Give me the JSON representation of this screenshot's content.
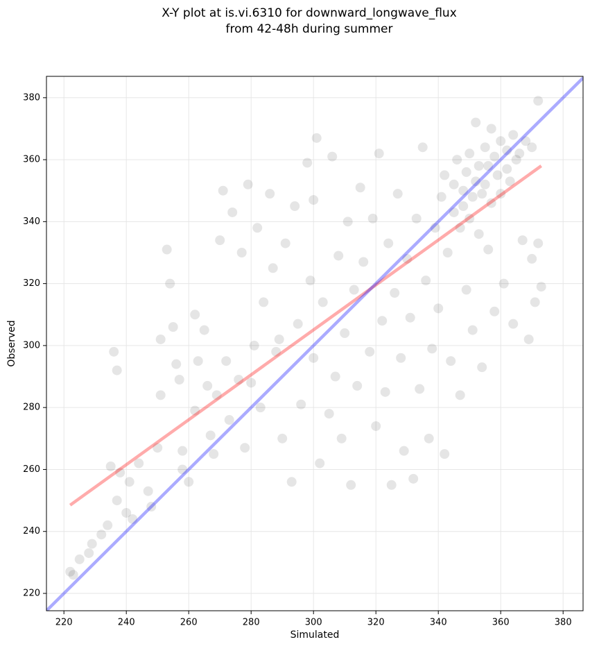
{
  "chart_data": {
    "type": "scatter",
    "title": [
      "X-Y plot at is.vi.6310 for downward_longwave_flux",
      "from 42-48h during summer"
    ],
    "x_label": "Simulated",
    "y_label": "Observed",
    "xlim": [
      214.4,
      386.4
    ],
    "ylim": [
      214.4,
      386.9
    ],
    "xticks": [
      220,
      240,
      260,
      280,
      300,
      320,
      340,
      360,
      380
    ],
    "yticks": [
      220,
      240,
      260,
      280,
      300,
      320,
      340,
      360,
      380
    ],
    "grid": true,
    "points": {
      "color": "#000000",
      "opacity": 0.1,
      "x": [
        222,
        223,
        225,
        228,
        229,
        232,
        234,
        235,
        236,
        237,
        237,
        238,
        240,
        241,
        242,
        244,
        247,
        248,
        250,
        251,
        251,
        253,
        254,
        255,
        256,
        257,
        258,
        258,
        260,
        262,
        262,
        263,
        265,
        266,
        267,
        268,
        269,
        270,
        271,
        272,
        273,
        274,
        276,
        277,
        278,
        279,
        280,
        281,
        282,
        283,
        284,
        286,
        287,
        288,
        289,
        290,
        291,
        293,
        294,
        295,
        296,
        298,
        299,
        300,
        300,
        301,
        302,
        303,
        305,
        306,
        307,
        308,
        309,
        310,
        311,
        312,
        313,
        314,
        315,
        316,
        318,
        319,
        320,
        321,
        322,
        323,
        324,
        325,
        326,
        327,
        328,
        329,
        330,
        331,
        332,
        333,
        334,
        335,
        336,
        337,
        338,
        339,
        340,
        341,
        342,
        342,
        343,
        344,
        345,
        345,
        346,
        347,
        347,
        348,
        348,
        349,
        349,
        350,
        350,
        351,
        351,
        352,
        352,
        353,
        353,
        354,
        354,
        355,
        355,
        356,
        356,
        357,
        357,
        358,
        358,
        359,
        360,
        360,
        361,
        362,
        362,
        363,
        364,
        364,
        365,
        366,
        367,
        368,
        369,
        370,
        370,
        371,
        372,
        372,
        373
      ],
      "y": [
        227,
        226,
        231,
        233,
        236,
        239,
        242,
        261,
        298,
        250,
        292,
        259,
        246,
        256,
        244,
        262,
        253,
        248,
        267,
        284,
        302,
        331,
        320,
        306,
        294,
        289,
        266,
        260,
        256,
        279,
        310,
        295,
        305,
        287,
        271,
        265,
        284,
        334,
        350,
        295,
        276,
        343,
        289,
        330,
        267,
        352,
        288,
        300,
        338,
        280,
        314,
        349,
        325,
        298,
        302,
        270,
        333,
        256,
        345,
        307,
        281,
        359,
        321,
        296,
        347,
        367,
        262,
        314,
        278,
        361,
        290,
        329,
        270,
        304,
        340,
        255,
        318,
        287,
        351,
        327,
        298,
        341,
        274,
        362,
        308,
        285,
        333,
        255,
        317,
        349,
        296,
        266,
        328,
        309,
        257,
        341,
        286,
        364,
        321,
        270,
        299,
        338,
        312,
        348,
        265,
        355,
        330,
        295,
        343,
        352,
        360,
        338,
        284,
        350,
        345,
        356,
        318,
        362,
        341,
        348,
        305,
        353,
        372,
        358,
        336,
        349,
        293,
        364,
        352,
        358,
        331,
        346,
        370,
        361,
        311,
        355,
        366,
        349,
        320,
        363,
        357,
        353,
        368,
        307,
        360,
        362,
        334,
        366,
        302,
        364,
        328,
        314,
        379,
        333,
        319
      ]
    },
    "lines": [
      {
        "color": "#ff0000",
        "x": [
          222,
          373
        ],
        "y": [
          248.5,
          358
        ]
      },
      {
        "color": "#0000ff",
        "x": [
          214.4,
          386.4
        ],
        "y": [
          214.4,
          386.4
        ]
      }
    ]
  }
}
